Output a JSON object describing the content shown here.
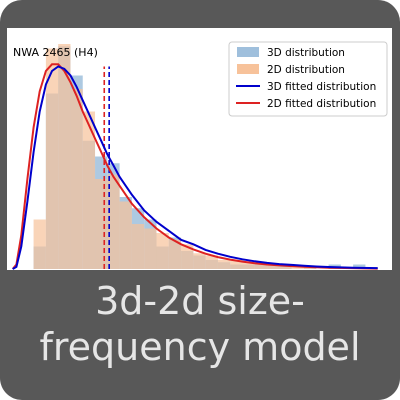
{
  "caption": {
    "line1": "3d-2d size-",
    "line2": "frequency model"
  },
  "colors": {
    "card_background": "#585858",
    "hist_3d": "#9fbfdc",
    "hist_2d": "#f7c29a",
    "fit_3d": "#0000cc",
    "fit_2d": "#dd2222"
  },
  "chart_data": {
    "type": "bar",
    "title": "NWA 2465 (H4)",
    "xlabel": "",
    "ylabel": "",
    "grid": false,
    "legend_placement": "top-right",
    "xlim": [
      0,
      31
    ],
    "ylim": [
      0,
      1
    ],
    "legend": [
      {
        "label": "3D distribution",
        "kind": "patch",
        "color_key": "hist_3d"
      },
      {
        "label": "2D distribution",
        "kind": "patch",
        "color_key": "hist_2d"
      },
      {
        "label": "3D fitted distribution",
        "kind": "line",
        "color_key": "fit_3d"
      },
      {
        "label": "2D fitted distribution",
        "kind": "line",
        "color_key": "fit_2d"
      }
    ],
    "series": [
      {
        "name": "3D distribution",
        "kind": "histogram",
        "bin_edges": [
          0,
          1,
          2,
          3,
          4,
          5,
          6,
          7,
          8,
          9,
          10,
          11,
          12,
          13,
          14,
          15,
          16,
          17,
          18,
          19,
          20,
          21,
          22,
          23,
          24,
          25,
          26,
          27,
          28,
          29,
          30,
          31
        ],
        "values": [
          0.0,
          0.0,
          0.1,
          0.78,
          0.99,
          0.86,
          0.57,
          0.5,
          0.47,
          0.32,
          0.27,
          0.22,
          0.1,
          0.14,
          0.08,
          0.06,
          0.04,
          0.03,
          0.02,
          0.02,
          0.03,
          0.02,
          0.02,
          0.0,
          0.01,
          0.0,
          0.02,
          0.0,
          0.02,
          0.0,
          0.0
        ]
      },
      {
        "name": "2D distribution",
        "kind": "histogram",
        "bin_edges": [
          0,
          1,
          2,
          3,
          4,
          5,
          6,
          7,
          8,
          9,
          10,
          11,
          12,
          13,
          14,
          15,
          16,
          17,
          18,
          19,
          20,
          21,
          22,
          23,
          24,
          25,
          26,
          27,
          28,
          29,
          30,
          31
        ],
        "values": [
          0.0,
          0.0,
          0.22,
          0.98,
          1.0,
          0.8,
          0.7,
          0.4,
          0.42,
          0.3,
          0.2,
          0.18,
          0.16,
          0.13,
          0.11,
          0.07,
          0.06,
          0.04,
          0.04,
          0.03,
          0.02,
          0.02,
          0.01,
          0.01,
          0.01,
          0.0,
          0.0,
          0.0,
          0.0,
          0.0,
          0.0
        ]
      },
      {
        "name": "3D fitted distribution",
        "kind": "lognormal_fit",
        "mean_line_x": 8.15,
        "x": [
          0.3,
          0.6,
          1,
          1.5,
          2,
          2.5,
          3,
          3.5,
          4,
          4.5,
          5,
          5.5,
          6,
          6.5,
          7,
          7.5,
          8,
          8.5,
          9,
          10,
          11,
          12,
          13,
          14,
          15,
          16,
          17,
          18,
          19,
          20,
          21,
          22,
          23,
          24,
          25,
          26,
          28,
          30
        ],
        "values": [
          0.0,
          0.01,
          0.1,
          0.3,
          0.52,
          0.7,
          0.82,
          0.88,
          0.9,
          0.89,
          0.86,
          0.81,
          0.75,
          0.69,
          0.63,
          0.57,
          0.51,
          0.46,
          0.41,
          0.33,
          0.26,
          0.21,
          0.17,
          0.13,
          0.11,
          0.085,
          0.068,
          0.054,
          0.043,
          0.034,
          0.027,
          0.022,
          0.018,
          0.014,
          0.011,
          0.009,
          0.006,
          0.004
        ]
      },
      {
        "name": "2D fitted distribution",
        "kind": "lognormal_fit",
        "mean_line_x": 7.75,
        "x": [
          0.3,
          0.6,
          1,
          1.5,
          2,
          2.5,
          3,
          3.5,
          4,
          4.5,
          5,
          5.5,
          6,
          6.5,
          7,
          7.5,
          8,
          8.5,
          9,
          10,
          11,
          12,
          13,
          14,
          15,
          16,
          17,
          18,
          19,
          20,
          21,
          22,
          23,
          24,
          25,
          26,
          28,
          30
        ],
        "values": [
          0.0,
          0.02,
          0.15,
          0.4,
          0.63,
          0.79,
          0.88,
          0.91,
          0.91,
          0.88,
          0.83,
          0.77,
          0.7,
          0.64,
          0.58,
          0.52,
          0.46,
          0.41,
          0.37,
          0.29,
          0.23,
          0.18,
          0.14,
          0.11,
          0.087,
          0.068,
          0.053,
          0.042,
          0.033,
          0.026,
          0.02,
          0.016,
          0.013,
          0.01,
          0.008,
          0.006,
          0.004,
          0.002
        ]
      }
    ]
  }
}
